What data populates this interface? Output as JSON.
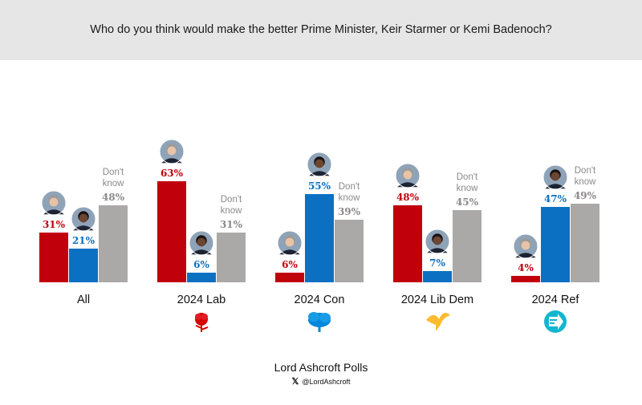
{
  "header": {
    "question": "Who do you think would make the better Prime Minister, Keir Starmer or Kemi Badenoch?"
  },
  "footer": {
    "source": "Lord Ashcroft Polls",
    "handle": "@LordAshcroft",
    "x_icon": "x-logo-icon"
  },
  "colors": {
    "starmer": "#c0000b",
    "badenoch": "#0b70c2",
    "dont_know": "#aba8a8"
  },
  "chart_data": {
    "type": "bar",
    "ylim": [
      0,
      100
    ],
    "grid": false,
    "series": [
      {
        "name": "Keir Starmer",
        "icon": "starmer-photo-icon"
      },
      {
        "name": "Kemi Badenoch",
        "icon": "badenoch-photo-icon"
      },
      {
        "name": "Don't know"
      }
    ],
    "dont_know_label": [
      "Don't",
      "know"
    ],
    "categories": [
      {
        "label": "All",
        "values": [
          31,
          21,
          48
        ],
        "value_labels": [
          "31%",
          "21%",
          "48%"
        ],
        "party_icon": ""
      },
      {
        "label": "2024 Lab",
        "values": [
          63,
          6,
          31
        ],
        "value_labels": [
          "63%",
          "6%",
          "31%"
        ],
        "party_icon": "labour-rose-icon"
      },
      {
        "label": "2024 Con",
        "values": [
          6,
          55,
          39
        ],
        "value_labels": [
          "6%",
          "55%",
          "39%"
        ],
        "party_icon": "conservative-tree-icon"
      },
      {
        "label": "2024 Lib Dem",
        "values": [
          48,
          7,
          45
        ],
        "value_labels": [
          "48%",
          "7%",
          "45%"
        ],
        "party_icon": "libdem-bird-icon"
      },
      {
        "label": "2024 Ref",
        "values": [
          4,
          47,
          49
        ],
        "value_labels": [
          "4%",
          "47%",
          "49%"
        ],
        "party_icon": "reform-arrow-icon"
      }
    ]
  }
}
